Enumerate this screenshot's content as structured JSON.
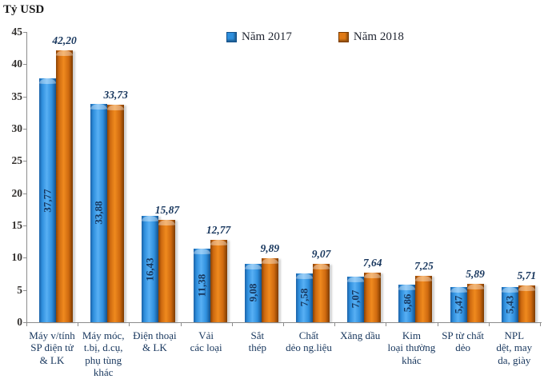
{
  "chart_data": {
    "type": "bar",
    "title": "",
    "ylabel": "Tỷ USD",
    "xlabel": "",
    "ylim": [
      0,
      45
    ],
    "ytick_step": 5,
    "grid": false,
    "legend_position": "top-center",
    "categories": [
      "Máy v/tính\nSP điện tử\n& LK",
      "Máy móc,\nt.bị, d.cụ,\nphụ tùng\nkhác",
      "Điện thoại\n& LK",
      "Vải\ncác loại",
      "Sắt\nthép",
      "Chất\ndẻo ng.liệu",
      "Xăng dầu",
      "Kim\nloại thường\nkhác",
      "SP từ chất\ndẻo",
      "NPL\ndệt, may\nda, giày"
    ],
    "series": [
      {
        "name": "Năm 2017",
        "color": "#2E8FDD",
        "values": [
          37.77,
          33.88,
          16.43,
          11.38,
          9.08,
          7.58,
          7.07,
          5.86,
          5.47,
          5.43
        ],
        "labels": [
          "37,77",
          "33,88",
          "16,43",
          "11,38",
          "9,08",
          "7,58",
          "7,07",
          "5,86",
          "5,47",
          "5,43"
        ]
      },
      {
        "name": "Năm 2018",
        "color": "#E07A16",
        "values": [
          42.2,
          33.73,
          15.87,
          12.77,
          9.89,
          9.07,
          7.64,
          7.25,
          5.89,
          5.71
        ],
        "labels": [
          "42,20",
          "33,73",
          "15,87",
          "12,77",
          "9,89",
          "9,07",
          "7,64",
          "7,25",
          "5,89",
          "5,71"
        ]
      }
    ]
  }
}
